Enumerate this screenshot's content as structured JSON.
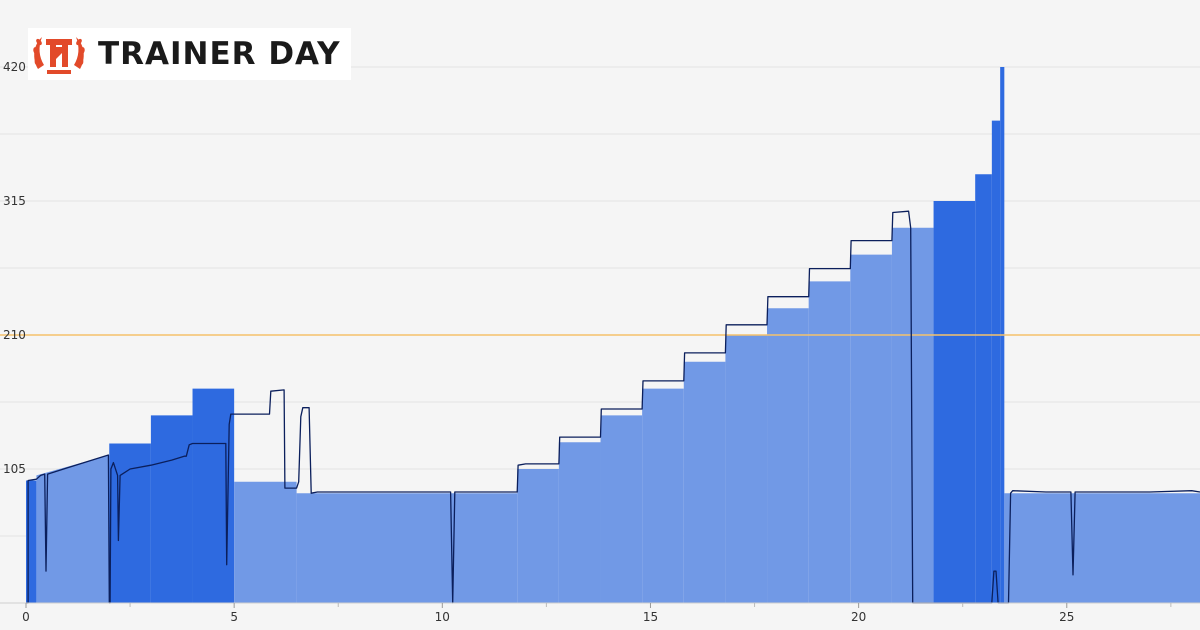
{
  "brand": {
    "name": "TRAINER DAY",
    "logo_icon": "laurel-wreath-td-icon",
    "logo_color": "#e24a2a"
  },
  "colors": {
    "background": "#f5f5f5",
    "target_fill": "#7199e6",
    "ramp_fill": "#2e6ae0",
    "power_line": "#0b1f5c",
    "ftp_line": "#f5c26b",
    "grid": "#e4e4e4"
  },
  "chart_data": {
    "type": "area",
    "title": "",
    "xlabel": "",
    "ylabel": "",
    "xlim": [
      0,
      28.2
    ],
    "ylim": [
      0,
      420
    ],
    "x_ticks": [
      0,
      5,
      10,
      15,
      20,
      25
    ],
    "y_ticks": [
      105,
      210,
      315,
      420
    ],
    "x_tick_labels": [
      "0",
      "5",
      "10",
      "15",
      "20",
      "25"
    ],
    "y_tick_labels": [
      "105",
      "210",
      "315",
      "420"
    ],
    "grid": true,
    "reference_line": {
      "y": 210,
      "color": "#f5c26b"
    },
    "target_segments": [
      {
        "x0": 0.0,
        "x1": 0.25,
        "y0": 96,
        "y1": 96,
        "ramp": true
      },
      {
        "x0": 0.25,
        "x1": 2.0,
        "y0": 100,
        "y1": 116,
        "ramp": false
      },
      {
        "x0": 2.0,
        "x1": 3.0,
        "y0": 125,
        "y1": 125,
        "ramp": true
      },
      {
        "x0": 3.0,
        "x1": 4.0,
        "y0": 147,
        "y1": 147,
        "ramp": true
      },
      {
        "x0": 4.0,
        "x1": 5.0,
        "y0": 168,
        "y1": 168,
        "ramp": true
      },
      {
        "x0": 5.0,
        "x1": 6.5,
        "y0": 95,
        "y1": 95,
        "ramp": false
      },
      {
        "x0": 6.5,
        "x1": 11.8,
        "y0": 86,
        "y1": 86,
        "ramp": false
      },
      {
        "x0": 11.8,
        "x1": 12.8,
        "y0": 105,
        "y1": 105,
        "ramp": false
      },
      {
        "x0": 12.8,
        "x1": 13.8,
        "y0": 126,
        "y1": 126,
        "ramp": false
      },
      {
        "x0": 13.8,
        "x1": 14.8,
        "y0": 147,
        "y1": 147,
        "ramp": false
      },
      {
        "x0": 14.8,
        "x1": 15.8,
        "y0": 168,
        "y1": 168,
        "ramp": false
      },
      {
        "x0": 15.8,
        "x1": 16.8,
        "y0": 189,
        "y1": 189,
        "ramp": false
      },
      {
        "x0": 16.8,
        "x1": 17.8,
        "y0": 210,
        "y1": 210,
        "ramp": false
      },
      {
        "x0": 17.8,
        "x1": 18.8,
        "y0": 231,
        "y1": 231,
        "ramp": false
      },
      {
        "x0": 18.8,
        "x1": 19.8,
        "y0": 252,
        "y1": 252,
        "ramp": false
      },
      {
        "x0": 19.8,
        "x1": 20.8,
        "y0": 273,
        "y1": 273,
        "ramp": false
      },
      {
        "x0": 20.8,
        "x1": 21.8,
        "y0": 294,
        "y1": 294,
        "ramp": false
      },
      {
        "x0": 21.8,
        "x1": 22.8,
        "y0": 315,
        "y1": 315,
        "ramp": true
      },
      {
        "x0": 22.8,
        "x1": 23.2,
        "y0": 336,
        "y1": 336,
        "ramp": true
      },
      {
        "x0": 23.2,
        "x1": 23.4,
        "y0": 378,
        "y1": 378,
        "ramp": true
      },
      {
        "x0": 23.4,
        "x1": 23.5,
        "y0": 420,
        "y1": 420,
        "ramp": true
      },
      {
        "x0": 23.5,
        "x1": 28.2,
        "y0": 86,
        "y1": 86,
        "ramp": false
      }
    ],
    "series": [
      {
        "points": [
          [
            0,
            0
          ],
          [
            0.05,
            0
          ],
          [
            0.05,
            96
          ],
          [
            0.25,
            97
          ],
          [
            0.35,
            100
          ],
          [
            0.45,
            101
          ],
          [
            0.48,
            25
          ],
          [
            0.52,
            101
          ],
          [
            1.0,
            106
          ],
          [
            1.5,
            111
          ],
          [
            1.98,
            116
          ],
          [
            2.0,
            0
          ],
          [
            2.02,
            0
          ],
          [
            2.04,
            105
          ],
          [
            2.1,
            110
          ],
          [
            2.2,
            100
          ],
          [
            2.22,
            49
          ],
          [
            2.26,
            100
          ],
          [
            2.5,
            105
          ],
          [
            3.0,
            108
          ],
          [
            3.5,
            112
          ],
          [
            3.8,
            115
          ],
          [
            3.85,
            115
          ],
          [
            3.92,
            124
          ],
          [
            4.0,
            125
          ],
          [
            4.5,
            125
          ],
          [
            4.8,
            125
          ],
          [
            4.82,
            30
          ],
          [
            4.88,
            140
          ],
          [
            4.92,
            148
          ],
          [
            5.5,
            148
          ],
          [
            5.85,
            148
          ],
          [
            5.88,
            166
          ],
          [
            6.2,
            167
          ],
          [
            6.22,
            90
          ],
          [
            6.5,
            90
          ],
          [
            6.55,
            95
          ],
          [
            6.6,
            146
          ],
          [
            6.65,
            153
          ],
          [
            6.8,
            153
          ],
          [
            6.85,
            86
          ],
          [
            7.0,
            87
          ],
          [
            8.0,
            87
          ],
          [
            9.0,
            87
          ],
          [
            10.2,
            87
          ],
          [
            10.25,
            0
          ],
          [
            10.3,
            87
          ],
          [
            11.0,
            87
          ],
          [
            11.8,
            87
          ],
          [
            11.82,
            108
          ],
          [
            12.0,
            109
          ],
          [
            12.8,
            109
          ],
          [
            12.82,
            130
          ],
          [
            13.8,
            130
          ],
          [
            13.82,
            152
          ],
          [
            14.8,
            152
          ],
          [
            14.82,
            174
          ],
          [
            15.8,
            174
          ],
          [
            15.82,
            196
          ],
          [
            16.8,
            196
          ],
          [
            16.82,
            218
          ],
          [
            17.8,
            218
          ],
          [
            17.82,
            240
          ],
          [
            18.8,
            240
          ],
          [
            18.82,
            262
          ],
          [
            19.8,
            262
          ],
          [
            19.82,
            284
          ],
          [
            20.8,
            284
          ],
          [
            20.82,
            306
          ],
          [
            21.2,
            307
          ],
          [
            21.25,
            294
          ],
          [
            21.3,
            0
          ],
          [
            23.2,
            0
          ],
          [
            23.25,
            25
          ],
          [
            23.3,
            25
          ],
          [
            23.35,
            0
          ],
          [
            23.6,
            0
          ],
          [
            23.65,
            86
          ],
          [
            23.7,
            88
          ],
          [
            24.5,
            87
          ],
          [
            25.1,
            87
          ],
          [
            25.15,
            22
          ],
          [
            25.2,
            87
          ],
          [
            26.0,
            87
          ],
          [
            27.0,
            87
          ],
          [
            28.0,
            88
          ],
          [
            28.2,
            87
          ]
        ]
      }
    ]
  }
}
